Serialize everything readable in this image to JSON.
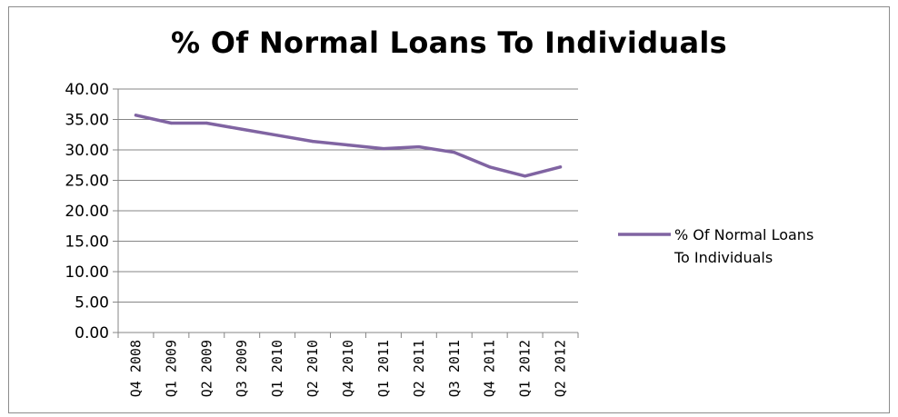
{
  "chart_data": {
    "type": "line",
    "title": "% Of Normal Loans To Individuals",
    "xlabel": "",
    "ylabel": "",
    "ylim": [
      0,
      40
    ],
    "yticks": [
      "0.00",
      "5.00",
      "10.00",
      "15.00",
      "20.00",
      "25.00",
      "30.00",
      "35.00",
      "40.00"
    ],
    "categories": [
      "Q4 2008",
      "Q1 2009",
      "Q2 2009",
      "Q3 2009",
      "Q1 2010",
      "Q2 2010",
      "Q4 2010",
      "Q1 2011",
      "Q2 2011",
      "Q3 2011",
      "Q4 2011",
      "Q1 2012",
      "Q2 2012"
    ],
    "series": [
      {
        "name": "% Of Normal Loans To Individuals",
        "color": "#8064A2",
        "values": [
          35.7,
          34.4,
          34.4,
          33.4,
          32.4,
          31.4,
          30.8,
          30.2,
          30.5,
          29.6,
          27.2,
          25.7,
          27.2
        ]
      }
    ],
    "grid": true,
    "legend": "right"
  },
  "legend": {
    "lines": [
      "% Of Normal Loans",
      "To Individuals"
    ]
  }
}
